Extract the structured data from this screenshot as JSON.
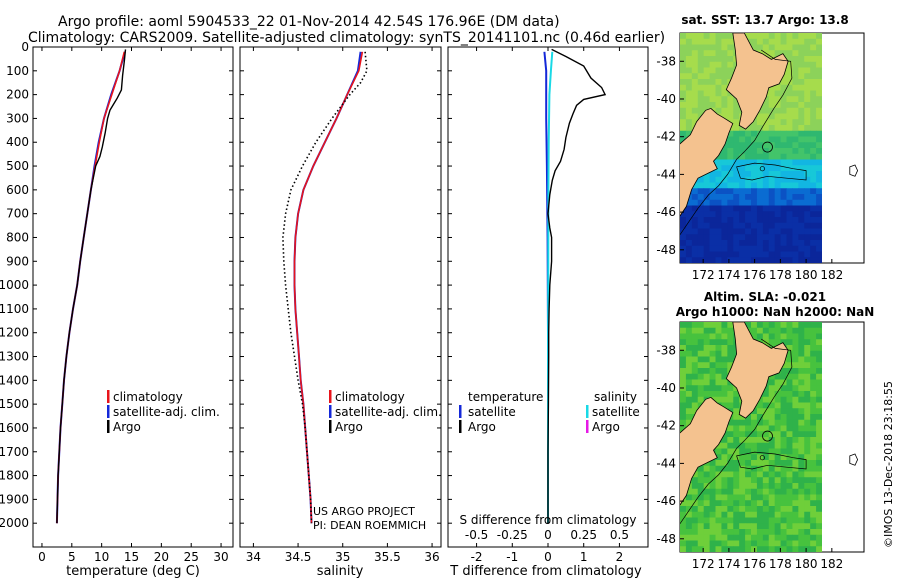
{
  "header": {
    "title_line1": "Argo profile: aoml 5904533_22 01-Nov-2014 42.54S 176.96E (DM data)",
    "title_line2": "Climatology: CARS2009. Satellite-adjusted climatology: synTS_20141101.nc (0.46d earlier)"
  },
  "colors": {
    "climatology": "#e8141b",
    "satellite_adj": "#1428d8",
    "argo": "#000000",
    "satellite_temp_diff": "#1428d8",
    "satellite_sal_diff": "#19d9e6",
    "argo_sal_diff": "#e619e6",
    "land": "#f4c28f"
  },
  "chart_data": [
    {
      "id": "temperature",
      "type": "line",
      "xlabel": "temperature (deg C)",
      "ylabel": "",
      "xlim": [
        -1.5,
        32
      ],
      "ylim": [
        2100,
        0
      ],
      "xticks": [
        0,
        5,
        10,
        15,
        20,
        25,
        30
      ],
      "xtick_labels": [
        "0",
        "5",
        "10",
        "15",
        "20",
        "25",
        "30"
      ],
      "yticks": [
        0,
        100,
        200,
        300,
        400,
        500,
        600,
        700,
        800,
        900,
        1000,
        1100,
        1200,
        1300,
        1400,
        1500,
        1600,
        1700,
        1800,
        1900,
        2000
      ],
      "ytick_labels": [
        "0",
        "100",
        "200",
        "300",
        "400",
        "500",
        "600",
        "700",
        "800",
        "900",
        "1000",
        "1100",
        "1200",
        "1300",
        "1400",
        "1500",
        "1600",
        "1700",
        "1800",
        "1900",
        "2000"
      ],
      "legend": [
        "climatology",
        "satellite-adj. clim.",
        "Argo"
      ],
      "series": [
        {
          "name": "climatology",
          "depth": [
            20,
            100,
            200,
            300,
            400,
            500,
            600,
            700,
            800,
            900,
            1000,
            1100,
            1200,
            1300,
            1400,
            1500,
            1600,
            1700,
            1800,
            1900,
            2000
          ],
          "values": [
            13.8,
            13.0,
            11.7,
            10.4,
            9.6,
            8.9,
            8.2,
            7.6,
            7.0,
            6.4,
            5.9,
            5.2,
            4.6,
            4.1,
            3.7,
            3.4,
            3.1,
            2.9,
            2.7,
            2.6,
            2.5
          ]
        },
        {
          "name": "satellite-adj. clim.",
          "depth": [
            20,
            100,
            200,
            300,
            400,
            500,
            600,
            700,
            800,
            900,
            1000,
            1100,
            1200,
            1300,
            1400,
            1500,
            1600,
            1700,
            1800,
            1900,
            2000
          ],
          "values": [
            13.9,
            13.0,
            11.6,
            10.4,
            9.5,
            8.8,
            8.2,
            7.6,
            7.0,
            6.4,
            5.9,
            5.2,
            4.6,
            4.1,
            3.7,
            3.4,
            3.1,
            2.9,
            2.7,
            2.6,
            2.5
          ]
        },
        {
          "name": "Argo",
          "depth": [
            10,
            60,
            120,
            180,
            215,
            240,
            265,
            300,
            360,
            420,
            460,
            500,
            600,
            700,
            800,
            900,
            1000,
            1100,
            1200,
            1300,
            1400,
            1500,
            1600,
            1700,
            1800,
            1900,
            2000
          ],
          "values": [
            14.0,
            13.8,
            13.5,
            13.3,
            12.6,
            12.0,
            11.4,
            11.0,
            10.6,
            10.1,
            9.7,
            9.0,
            8.2,
            7.6,
            7.0,
            6.4,
            5.9,
            5.2,
            4.6,
            4.1,
            3.7,
            3.4,
            3.1,
            2.9,
            2.7,
            2.6,
            2.5
          ]
        }
      ]
    },
    {
      "id": "salinity",
      "type": "line",
      "xlabel": "salinity",
      "xlim": [
        33.85,
        36.1
      ],
      "ylim": [
        2100,
        0
      ],
      "xticks": [
        34,
        34.5,
        35,
        35.5,
        36
      ],
      "xtick_labels": [
        "34",
        "34.5",
        "35",
        "35.5",
        "36"
      ],
      "legend": [
        "climatology",
        "satellite-adj. clim.",
        "Argo"
      ],
      "annotation": [
        "US ARGO PROJECT",
        "PI: DEAN ROEMMICH"
      ],
      "series": [
        {
          "name": "climatology",
          "depth": [
            20,
            100,
            200,
            300,
            400,
            500,
            600,
            700,
            800,
            900,
            1000,
            1100,
            1200,
            1300,
            1400,
            1500,
            1600,
            1700,
            1800,
            1900,
            2000
          ],
          "values": [
            35.22,
            35.18,
            35.05,
            34.93,
            34.8,
            34.67,
            34.56,
            34.5,
            34.47,
            34.46,
            34.46,
            34.47,
            34.49,
            34.51,
            34.53,
            34.56,
            34.58,
            34.6,
            34.62,
            34.64,
            34.65
          ]
        },
        {
          "name": "satellite-adj. clim.",
          "depth": [
            20,
            100,
            200,
            300,
            400,
            500,
            600,
            700,
            800,
            900,
            1000,
            1100,
            1200,
            1300,
            1400,
            1500,
            1600,
            1700,
            1800,
            1900,
            2000
          ],
          "values": [
            35.2,
            35.17,
            35.05,
            34.93,
            34.8,
            34.67,
            34.56,
            34.5,
            34.47,
            34.46,
            34.46,
            34.47,
            34.49,
            34.51,
            34.53,
            34.56,
            34.58,
            34.6,
            34.62,
            34.64,
            34.65
          ]
        },
        {
          "name": "Argo",
          "depth": [
            20,
            100,
            150,
            200,
            250,
            300,
            400,
            500,
            600,
            700,
            800,
            900,
            1000,
            1100,
            1200,
            1300,
            1400,
            1500,
            1600,
            1700,
            1800,
            1900,
            2000
          ],
          "values": [
            35.25,
            35.27,
            35.2,
            35.08,
            34.98,
            34.88,
            34.7,
            34.55,
            34.42,
            34.36,
            34.33,
            34.34,
            34.36,
            34.39,
            34.42,
            34.46,
            34.5,
            34.55,
            34.58,
            34.6,
            34.62,
            34.64,
            34.65
          ]
        }
      ]
    },
    {
      "id": "difference",
      "type": "line",
      "xlabel": "T difference from climatology",
      "xlabel2": "S difference from climatology",
      "xlim": [
        -2.8,
        2.8
      ],
      "xlim_salinity": [
        -0.7,
        0.7
      ],
      "ylim": [
        2100,
        0
      ],
      "xticks": [
        -2,
        -1,
        0,
        1,
        2
      ],
      "xtick_labels": [
        "-2",
        "-1",
        "0",
        "1",
        "2"
      ],
      "xticks_salinity": [
        -0.5,
        -0.25,
        0,
        0.25,
        0.5
      ],
      "xtick_labels_salinity": [
        "-0.5",
        "-0.25",
        "0",
        "0.25",
        "0.5"
      ],
      "legend": {
        "temperature_title": "temperature",
        "salinity_title": "salinity",
        "satellite": "satellite",
        "argo": "Argo"
      },
      "series": [
        {
          "name": "temperature satellite",
          "units": "T",
          "depth": [
            20,
            100,
            300,
            500,
            800,
            1200,
            1600,
            2000
          ],
          "values": [
            -0.1,
            -0.05,
            -0.05,
            -0.03,
            -0.01,
            0,
            0,
            0
          ]
        },
        {
          "name": "salinity satellite",
          "units": "S",
          "depth": [
            20,
            100,
            200,
            400,
            600,
            900,
            1200,
            1600,
            2000
          ],
          "values": [
            0.03,
            0.02,
            0.01,
            0.005,
            0.003,
            0.002,
            0.001,
            0,
            0
          ]
        },
        {
          "name": "temperature Argo",
          "units": "T",
          "depth": [
            10,
            40,
            80,
            130,
            170,
            200,
            220,
            245,
            280,
            320,
            380,
            430,
            480,
            520,
            560,
            620,
            700,
            760,
            800,
            900,
            1000,
            1100,
            1200,
            1300,
            1500,
            1700,
            1900,
            2000
          ],
          "values": [
            0.1,
            0.5,
            1.0,
            1.2,
            1.5,
            1.6,
            1.0,
            0.8,
            0.7,
            0.6,
            0.5,
            0.45,
            0.35,
            0.2,
            0.12,
            0.05,
            0,
            0.05,
            0.1,
            0.1,
            0.05,
            0.03,
            0.02,
            0.02,
            0.01,
            0,
            0,
            0
          ]
        }
      ]
    },
    {
      "id": "sst_map",
      "type": "heatmap",
      "title": "sat. SST: 13.7 Argo: 13.8",
      "xticks": [
        172,
        174,
        176,
        178,
        180,
        182
      ],
      "xtick_labels": [
        "172",
        "174",
        "176",
        "178",
        "180",
        "182"
      ],
      "yticks": [
        -38,
        -40,
        -42,
        -44,
        -46,
        -48
      ],
      "ytick_labels": [
        "-38",
        "-40",
        "-42",
        "-44",
        "-46",
        "-48"
      ],
      "xlim": [
        170.2,
        184.5
      ],
      "ylim": [
        -48.7,
        -36.5
      ]
    },
    {
      "id": "sla_map",
      "type": "heatmap",
      "title_line1": "Altim. SLA: -0.021",
      "title_line2": "Argo h1000: NaN h2000: NaN",
      "xticks": [
        172,
        174,
        176,
        178,
        180,
        182
      ],
      "xtick_labels": [
        "172",
        "174",
        "176",
        "178",
        "180",
        "182"
      ],
      "yticks": [
        -38,
        -40,
        -42,
        -44,
        -46,
        -48
      ],
      "ytick_labels": [
        "-38",
        "-40",
        "-42",
        "-44",
        "-46",
        "-48"
      ],
      "xlim": [
        170.2,
        184.5
      ],
      "ylim": [
        -48.7,
        -36.5
      ]
    }
  ],
  "footer": {
    "credit": "©IMOS 13-Dec-2018 23:18:55"
  }
}
